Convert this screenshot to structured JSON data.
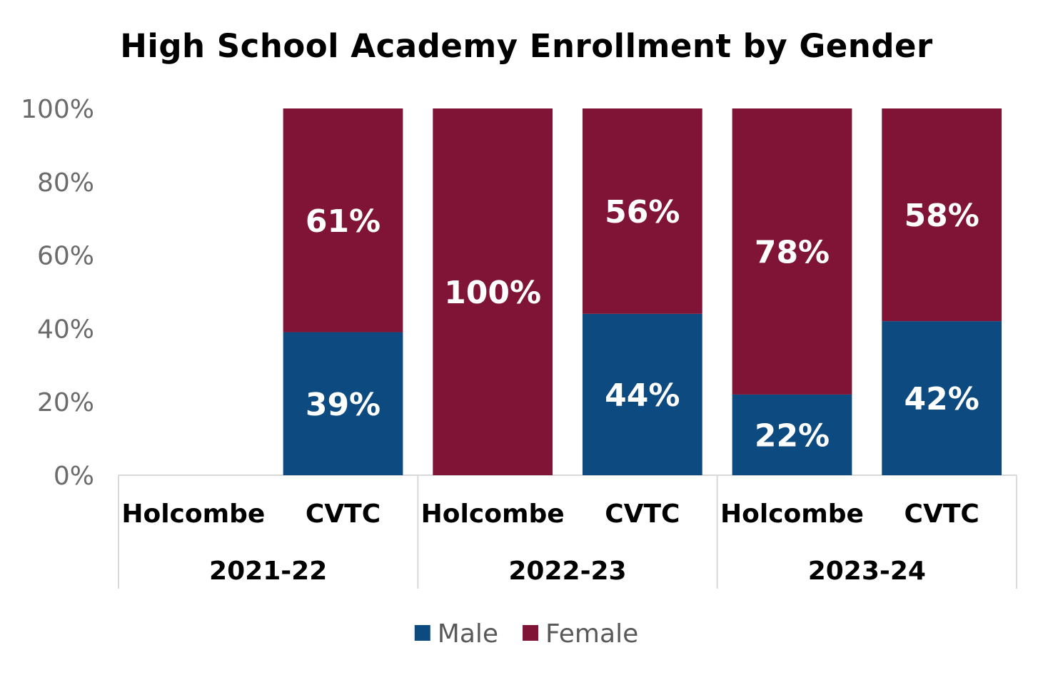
{
  "chart_data": {
    "type": "bar",
    "stacked": true,
    "percent": true,
    "title": "High School Academy Enrollment by Gender",
    "ylim": [
      0,
      100
    ],
    "yticks": [
      "0%",
      "20%",
      "40%",
      "60%",
      "80%",
      "100%"
    ],
    "groups": [
      {
        "label": "2021-22",
        "categories": [
          "Holcombe",
          "CVTC"
        ]
      },
      {
        "label": "2022-23",
        "categories": [
          "Holcombe",
          "CVTC"
        ]
      },
      {
        "label": "2023-24",
        "categories": [
          "Holcombe",
          "CVTC"
        ]
      }
    ],
    "series": [
      {
        "name": "Male",
        "color": "#0d4a80",
        "values": [
          null,
          39,
          0,
          44,
          22,
          42
        ],
        "labels": [
          "",
          "39%",
          "",
          "44%",
          "22%",
          "42%"
        ]
      },
      {
        "name": "Female",
        "color": "#801436",
        "values": [
          null,
          61,
          100,
          56,
          78,
          58
        ],
        "labels": [
          "",
          "61%",
          "100%",
          "56%",
          "78%",
          "58%"
        ]
      }
    ],
    "legend": "bottom",
    "grid": false
  }
}
